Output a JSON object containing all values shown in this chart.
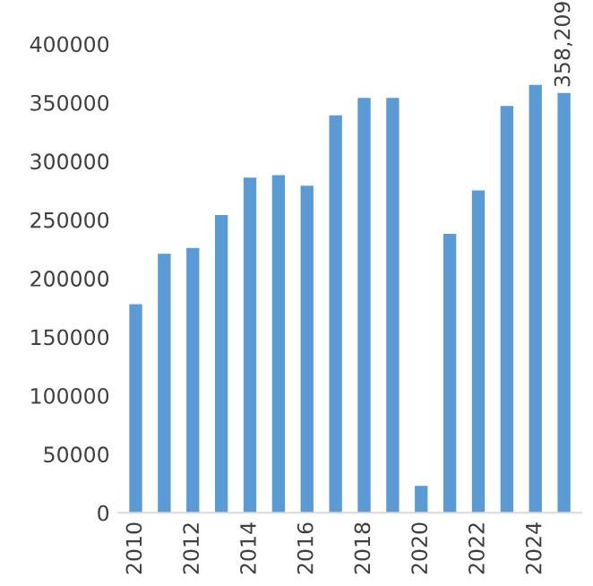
{
  "chart_data": {
    "type": "bar",
    "categories": [
      "2010",
      null,
      "2012",
      null,
      "2014",
      null,
      "2016",
      null,
      "2018",
      null,
      "2020",
      null,
      "2022",
      null,
      "2024",
      null
    ],
    "values": [
      178000,
      221000,
      226000,
      254000,
      286000,
      288000,
      279000,
      339000,
      354000,
      354000,
      23000,
      238000,
      275000,
      347000,
      365000,
      358209
    ],
    "value_labels": [
      null,
      null,
      null,
      null,
      null,
      null,
      null,
      null,
      null,
      null,
      null,
      null,
      null,
      null,
      null,
      "358,209"
    ],
    "color": "#5b9bd5",
    "ylim": [
      0,
      400000
    ],
    "yticks": [
      0,
      50000,
      100000,
      150000,
      200000,
      250000,
      300000,
      350000,
      400000
    ],
    "grid": false,
    "legend": false
  }
}
